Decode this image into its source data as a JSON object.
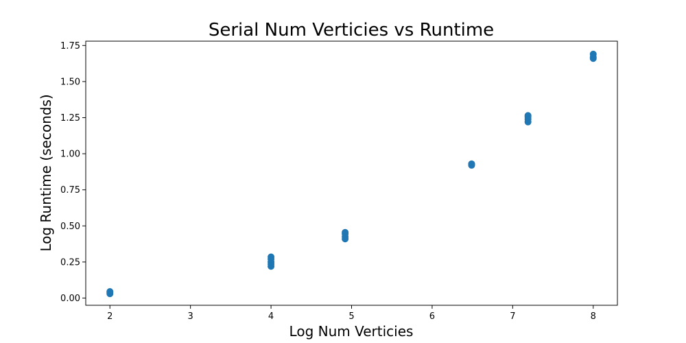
{
  "chart_data": {
    "type": "scatter",
    "title": "Serial Num Verticies vs Runtime",
    "xlabel": "Log Num Verticies",
    "ylabel": "Log Runtime (seconds)",
    "xlim": [
      1.7,
      8.3
    ],
    "ylim": [
      -0.05,
      1.78
    ],
    "xticks": [
      2,
      3,
      4,
      5,
      6,
      7,
      8
    ],
    "xtick_labels": [
      "2",
      "3",
      "4",
      "5",
      "6",
      "7",
      "8"
    ],
    "yticks": [
      0.0,
      0.25,
      0.5,
      0.75,
      1.0,
      1.25,
      1.5,
      1.75
    ],
    "ytick_labels": [
      "0.00",
      "0.25",
      "0.50",
      "0.75",
      "1.00",
      "1.25",
      "1.50",
      "1.75"
    ],
    "grid": false,
    "series": [
      {
        "color": "#1f77b4",
        "points": [
          {
            "x": 2.0,
            "y": 0.03
          },
          {
            "x": 2.0,
            "y": 0.04
          },
          {
            "x": 2.0,
            "y": 0.045
          },
          {
            "x": 4.0,
            "y": 0.22
          },
          {
            "x": 4.0,
            "y": 0.235
          },
          {
            "x": 4.0,
            "y": 0.25
          },
          {
            "x": 4.0,
            "y": 0.27
          },
          {
            "x": 4.0,
            "y": 0.285
          },
          {
            "x": 4.92,
            "y": 0.41
          },
          {
            "x": 4.92,
            "y": 0.425
          },
          {
            "x": 4.92,
            "y": 0.445
          },
          {
            "x": 4.92,
            "y": 0.455
          },
          {
            "x": 6.49,
            "y": 0.92
          },
          {
            "x": 6.49,
            "y": 0.925
          },
          {
            "x": 6.49,
            "y": 0.93
          },
          {
            "x": 7.19,
            "y": 1.22
          },
          {
            "x": 7.19,
            "y": 1.24
          },
          {
            "x": 7.19,
            "y": 1.255
          },
          {
            "x": 7.19,
            "y": 1.265
          },
          {
            "x": 8.0,
            "y": 1.66
          },
          {
            "x": 8.0,
            "y": 1.67
          },
          {
            "x": 8.0,
            "y": 1.69
          }
        ]
      }
    ]
  }
}
